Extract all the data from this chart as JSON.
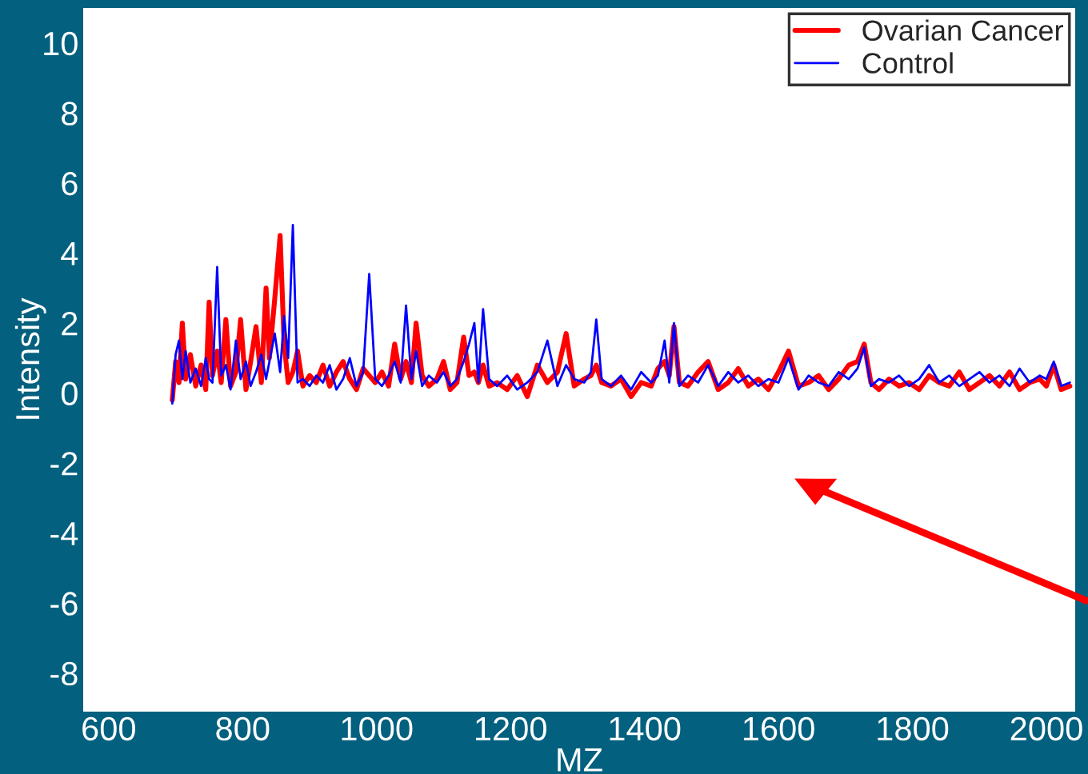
{
  "chart_data": {
    "type": "line",
    "xlabel": "MZ",
    "ylabel": "Intensity",
    "legend": "top right",
    "grid": false,
    "x": [
      695,
      700,
      705,
      710,
      715,
      722,
      730,
      738,
      745,
      750,
      755,
      762,
      768,
      775,
      782,
      790,
      797,
      805,
      812,
      820,
      828,
      835,
      840,
      848,
      856,
      862,
      868,
      875,
      882,
      890,
      900,
      910,
      920,
      930,
      940,
      950,
      960,
      970,
      980,
      989,
      998,
      1008,
      1018,
      1027,
      1036,
      1044,
      1052,
      1059,
      1068,
      1078,
      1090,
      1100,
      1110,
      1120,
      1130,
      1138,
      1146,
      1152,
      1159,
      1168,
      1180,
      1195,
      1210,
      1225,
      1240,
      1255,
      1270,
      1283,
      1295,
      1310,
      1320,
      1328,
      1336,
      1350,
      1365,
      1380,
      1395,
      1410,
      1420,
      1430,
      1437,
      1444,
      1452,
      1465,
      1480,
      1495,
      1510,
      1525,
      1540,
      1555,
      1570,
      1585,
      1600,
      1615,
      1630,
      1645,
      1660,
      1675,
      1690,
      1705,
      1718,
      1728,
      1738,
      1750,
      1765,
      1780,
      1795,
      1810,
      1825,
      1840,
      1855,
      1870,
      1885,
      1900,
      1915,
      1930,
      1945,
      1960,
      1975,
      1990,
      2000,
      2011,
      2022,
      2035
    ],
    "series": [
      {
        "name": "Ovarian Cancer",
        "color": "#ff0000",
        "values": [
          -0.2,
          0.9,
          0.3,
          2.0,
          0.4,
          1.1,
          0.2,
          0.8,
          0.1,
          2.6,
          0.5,
          1.2,
          0.3,
          2.1,
          0.2,
          0.6,
          2.1,
          0.1,
          0.9,
          1.9,
          0.3,
          3.0,
          1.0,
          2.7,
          4.5,
          1.4,
          0.3,
          0.6,
          1.2,
          0.2,
          0.5,
          0.3,
          0.8,
          0.2,
          0.6,
          0.9,
          0.4,
          0.1,
          0.7,
          0.5,
          0.3,
          0.6,
          0.2,
          1.4,
          0.4,
          0.9,
          0.3,
          2.0,
          0.5,
          0.2,
          0.4,
          0.9,
          0.1,
          0.3,
          1.6,
          0.5,
          0.6,
          0.3,
          0.8,
          0.2,
          0.3,
          0.1,
          0.5,
          -0.1,
          0.8,
          0.3,
          0.6,
          1.7,
          0.2,
          0.4,
          0.5,
          0.8,
          0.3,
          0.2,
          0.4,
          -0.1,
          0.3,
          0.2,
          0.7,
          0.9,
          0.5,
          1.9,
          0.3,
          0.2,
          0.6,
          0.9,
          0.1,
          0.3,
          0.7,
          0.2,
          0.4,
          0.1,
          0.6,
          1.2,
          0.2,
          0.3,
          0.5,
          0.1,
          0.4,
          0.8,
          0.9,
          1.4,
          0.3,
          0.1,
          0.4,
          0.2,
          0.3,
          0.1,
          0.5,
          0.3,
          0.2,
          0.6,
          0.1,
          0.3,
          0.5,
          0.2,
          0.6,
          0.1,
          0.3,
          0.4,
          0.2,
          0.8,
          0.1,
          0.2
        ]
      },
      {
        "name": "Control",
        "color": "#0000ff",
        "values": [
          -0.3,
          1.1,
          1.5,
          0.4,
          1.2,
          0.3,
          0.7,
          0.2,
          1.0,
          0.4,
          0.3,
          3.6,
          0.5,
          0.8,
          0.1,
          1.5,
          0.4,
          0.9,
          0.2,
          0.6,
          1.1,
          0.4,
          0.9,
          1.7,
          0.6,
          2.2,
          1.0,
          4.8,
          0.3,
          0.4,
          0.2,
          0.5,
          0.3,
          0.8,
          0.1,
          0.4,
          1.0,
          0.2,
          0.6,
          3.4,
          0.4,
          0.2,
          0.5,
          0.9,
          0.3,
          2.5,
          0.4,
          1.2,
          0.2,
          0.5,
          0.3,
          0.6,
          0.2,
          0.4,
          0.9,
          1.4,
          2.0,
          0.3,
          2.4,
          0.4,
          0.2,
          0.5,
          0.1,
          0.3,
          0.6,
          1.5,
          0.2,
          0.8,
          0.4,
          0.3,
          0.6,
          2.1,
          0.4,
          0.2,
          0.5,
          0.1,
          0.6,
          0.3,
          0.5,
          1.5,
          0.3,
          2.0,
          0.2,
          0.5,
          0.3,
          0.8,
          0.2,
          0.6,
          0.3,
          0.5,
          0.2,
          0.4,
          0.3,
          1.0,
          0.1,
          0.5,
          0.3,
          0.2,
          0.6,
          0.4,
          0.7,
          1.3,
          0.2,
          0.4,
          0.3,
          0.5,
          0.2,
          0.4,
          0.8,
          0.3,
          0.5,
          0.2,
          0.4,
          0.6,
          0.3,
          0.5,
          0.2,
          0.7,
          0.3,
          0.5,
          0.4,
          0.9,
          0.2,
          0.3
        ]
      }
    ],
    "xlim": [
      562,
      2043
    ],
    "xticks": [
      600,
      800,
      1000,
      1200,
      1400,
      1600,
      1800,
      2000
    ],
    "ylim": [
      -9.1,
      11
    ],
    "yticks": [
      -8,
      -6,
      -4,
      -2,
      0,
      2,
      4,
      6,
      8,
      10
    ]
  }
}
